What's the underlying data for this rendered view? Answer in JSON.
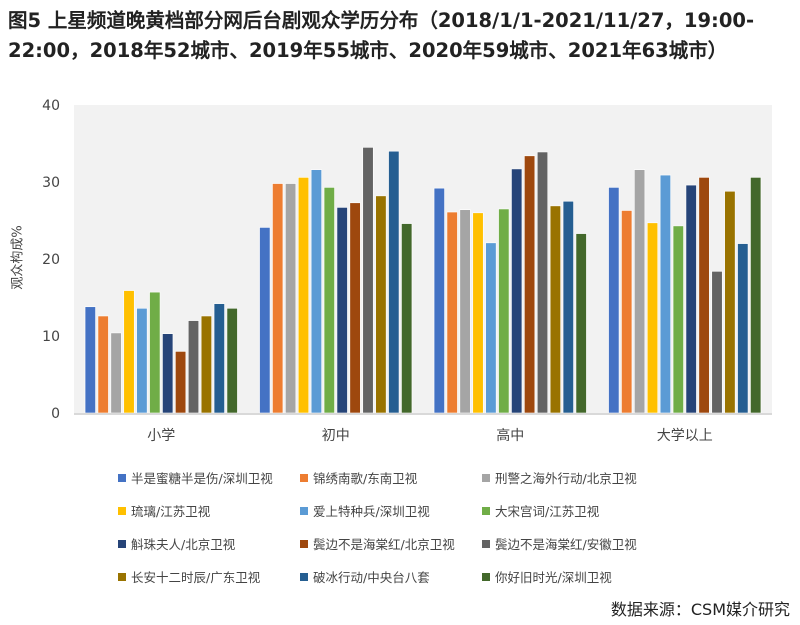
{
  "chart_data": {
    "type": "bar",
    "title": "图5 上星频道晚黄档部分网后台剧观众学历分布（2018/1/1-2021/11/27，19:00-22:00，2018年52城市、2019年55城市、2020年59城市、2021年63城市）",
    "xlabel": "",
    "ylabel": "观众构成%",
    "ylim": [
      0,
      40
    ],
    "yticks": [
      "0",
      "10",
      "20",
      "30",
      "40"
    ],
    "grid": false,
    "legend_position": "bottom",
    "categories": [
      "小学",
      "初中",
      "高中",
      "大学以上"
    ],
    "series": [
      {
        "name": "半是蜜糖半是伤/深圳卫视",
        "color": "#4472C4",
        "values": [
          13.8,
          24.1,
          29.2,
          29.3
        ]
      },
      {
        "name": "锦绣南歌/东南卫视",
        "color": "#ED7D31",
        "values": [
          12.6,
          29.8,
          26.1,
          26.3
        ]
      },
      {
        "name": "刑警之海外行动/北京卫视",
        "color": "#A5A5A5",
        "values": [
          10.4,
          29.8,
          26.4,
          31.6
        ]
      },
      {
        "name": "琉璃/江苏卫视",
        "color": "#FFC000",
        "values": [
          15.9,
          30.6,
          26.0,
          24.7
        ]
      },
      {
        "name": "爱上特种兵/深圳卫视",
        "color": "#5B9BD5",
        "values": [
          13.6,
          31.6,
          22.1,
          30.9
        ]
      },
      {
        "name": "大宋宫词/江苏卫视",
        "color": "#70AD47",
        "values": [
          15.7,
          29.3,
          26.5,
          24.3
        ]
      },
      {
        "name": "斛珠夫人/北京卫视",
        "color": "#264478",
        "values": [
          10.3,
          26.7,
          31.7,
          29.6
        ]
      },
      {
        "name": "鬓边不是海棠红/北京卫视",
        "color": "#9E480E",
        "values": [
          8.0,
          27.3,
          33.4,
          30.6
        ]
      },
      {
        "name": "鬓边不是海棠红/安徽卫视",
        "color": "#636363",
        "values": [
          12.0,
          34.5,
          33.9,
          18.4
        ]
      },
      {
        "name": "长安十二时辰/广东卫视",
        "color": "#997300",
        "values": [
          12.6,
          28.2,
          26.9,
          28.8
        ]
      },
      {
        "name": "破冰行动/中央台八套",
        "color": "#255E91",
        "values": [
          14.2,
          34.0,
          27.5,
          22.0
        ]
      },
      {
        "name": "你好旧时光/深圳卫视",
        "color": "#43682B",
        "values": [
          13.6,
          24.6,
          23.3,
          30.6
        ]
      }
    ],
    "source": "数据来源：CSM媒介研究"
  }
}
